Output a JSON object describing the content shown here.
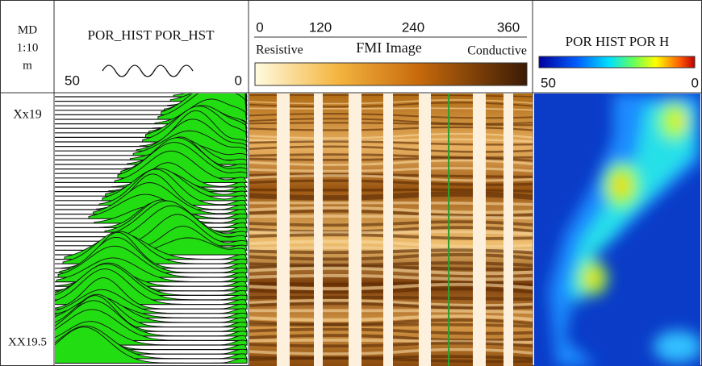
{
  "depth_track": {
    "header": [
      "MD",
      "1:10",
      "m"
    ],
    "labels": [
      "Xx19",
      "XX19.5"
    ]
  },
  "porosity_track": {
    "title": "POR_HIST POR_HST",
    "scale_left": 50,
    "scale_right": 0
  },
  "fmi_track": {
    "scale": [
      0,
      120,
      240,
      360
    ],
    "left_label": "Resistive",
    "title": "FMI Image",
    "right_label": "Conductive"
  },
  "map_track": {
    "title": "POR HIST POR H",
    "scale_left": 50,
    "scale_right": 0
  }
}
